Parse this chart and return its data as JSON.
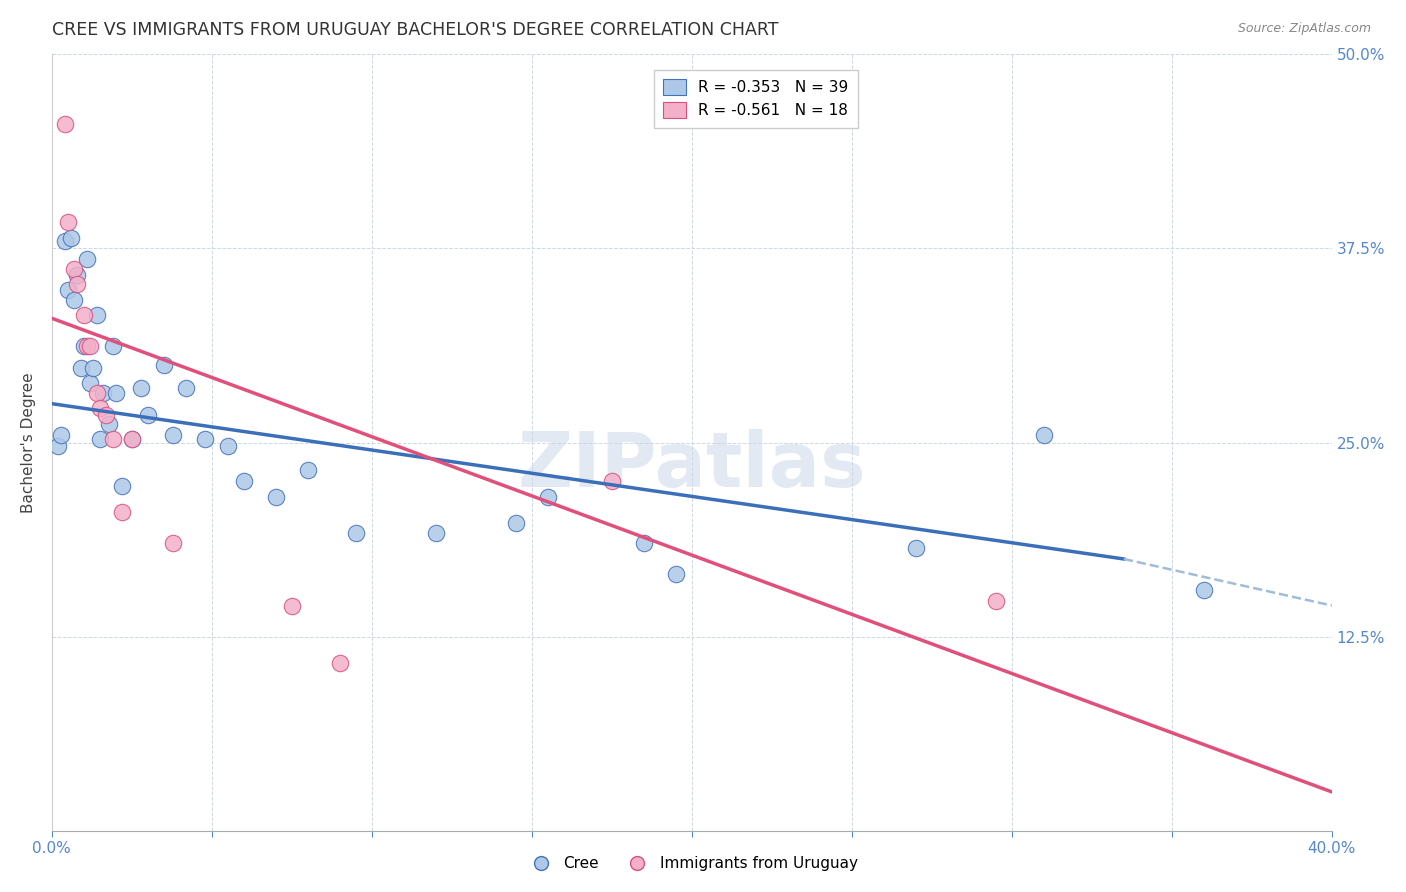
{
  "title": "CREE VS IMMIGRANTS FROM URUGUAY BACHELOR'S DEGREE CORRELATION CHART",
  "source": "Source: ZipAtlas.com",
  "ylabel": "Bachelor's Degree",
  "xlim": [
    0.0,
    0.4
  ],
  "ylim": [
    0.0,
    0.5
  ],
  "x_ticks": [
    0.0,
    0.05,
    0.1,
    0.15,
    0.2,
    0.25,
    0.3,
    0.35,
    0.4
  ],
  "x_tick_labels": [
    "0.0%",
    "",
    "",
    "",
    "",
    "",
    "",
    "",
    "40.0%"
  ],
  "y_ticks": [
    0.0,
    0.125,
    0.25,
    0.375,
    0.5
  ],
  "y_tick_labels_right": [
    "",
    "12.5%",
    "25.0%",
    "37.5%",
    "50.0%"
  ],
  "blue_scatter_x": [
    0.002,
    0.003,
    0.004,
    0.005,
    0.006,
    0.007,
    0.008,
    0.009,
    0.01,
    0.011,
    0.012,
    0.013,
    0.014,
    0.015,
    0.016,
    0.018,
    0.019,
    0.02,
    0.022,
    0.025,
    0.028,
    0.03,
    0.035,
    0.038,
    0.042,
    0.048,
    0.055,
    0.06,
    0.07,
    0.08,
    0.095,
    0.12,
    0.145,
    0.155,
    0.185,
    0.195,
    0.27,
    0.31,
    0.36
  ],
  "blue_scatter_y": [
    0.248,
    0.255,
    0.38,
    0.348,
    0.382,
    0.342,
    0.358,
    0.298,
    0.312,
    0.368,
    0.288,
    0.298,
    0.332,
    0.252,
    0.282,
    0.262,
    0.312,
    0.282,
    0.222,
    0.252,
    0.285,
    0.268,
    0.3,
    0.255,
    0.285,
    0.252,
    0.248,
    0.225,
    0.215,
    0.232,
    0.192,
    0.192,
    0.198,
    0.215,
    0.185,
    0.165,
    0.182,
    0.255,
    0.155
  ],
  "pink_scatter_x": [
    0.004,
    0.005,
    0.007,
    0.008,
    0.01,
    0.011,
    0.012,
    0.014,
    0.015,
    0.017,
    0.019,
    0.022,
    0.025,
    0.038,
    0.075,
    0.09,
    0.175,
    0.295
  ],
  "pink_scatter_y": [
    0.455,
    0.392,
    0.362,
    0.352,
    0.332,
    0.312,
    0.312,
    0.282,
    0.272,
    0.268,
    0.252,
    0.205,
    0.252,
    0.185,
    0.145,
    0.108,
    0.225,
    0.148
  ],
  "blue_line_x0": 0.0,
  "blue_line_y0": 0.275,
  "blue_line_x1_solid": 0.335,
  "blue_line_y1_solid": 0.175,
  "blue_line_x1_dashed": 0.4,
  "blue_line_y1_dashed": 0.145,
  "pink_line_x0": 0.0,
  "pink_line_y0": 0.33,
  "pink_line_x1": 0.4,
  "pink_line_y1": 0.025,
  "blue_color": "#adc8e8",
  "blue_edge_color": "#4472b8",
  "blue_line_color": "#3b6fba",
  "pink_color": "#f4b0c8",
  "pink_edge_color": "#d85080",
  "pink_line_color": "#e0507a",
  "dashed_color": "#a0bcd8",
  "watermark_text": "ZIPatlas",
  "watermark_color": "#ccd8e8",
  "legend_label1": "R = -0.353   N = 39",
  "legend_label2": "R = -0.561   N = 18",
  "bottom_legend_label1": "Cree",
  "bottom_legend_label2": "Immigrants from Uruguay",
  "background_color": "#ffffff",
  "grid_color": "#ccd8e4",
  "title_color": "#333333",
  "title_fontsize": 12.5,
  "source_fontsize": 9,
  "tick_fontsize": 11,
  "legend_fontsize": 11,
  "ylabel_fontsize": 11,
  "marker_size": 140
}
